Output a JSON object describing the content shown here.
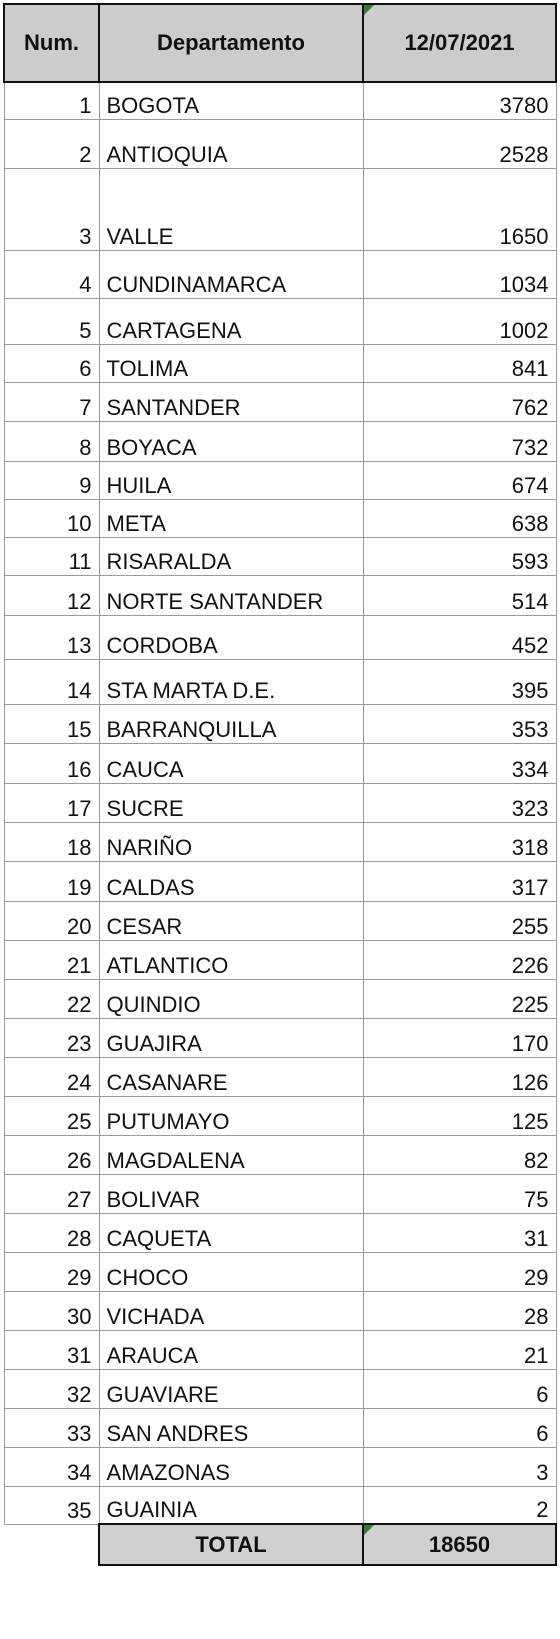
{
  "header": {
    "num_label": "Num.",
    "dept_label": "Departamento",
    "date_label": "12/07/2021"
  },
  "rows": [
    {
      "num": "1",
      "dept": "BOGOTA",
      "value": "3780"
    },
    {
      "num": "2",
      "dept": "ANTIOQUIA",
      "value": "2528"
    },
    {
      "num": "3",
      "dept": "VALLE",
      "value": "1650"
    },
    {
      "num": "4",
      "dept": "CUNDINAMARCA",
      "value": "1034"
    },
    {
      "num": "5",
      "dept": "CARTAGENA",
      "value": "1002"
    },
    {
      "num": "6",
      "dept": "TOLIMA",
      "value": "841"
    },
    {
      "num": "7",
      "dept": "SANTANDER",
      "value": "762"
    },
    {
      "num": "8",
      "dept": "BOYACA",
      "value": "732"
    },
    {
      "num": "9",
      "dept": "HUILA",
      "value": "674"
    },
    {
      "num": "10",
      "dept": "META",
      "value": "638"
    },
    {
      "num": "11",
      "dept": "RISARALDA",
      "value": "593"
    },
    {
      "num": "12",
      "dept": "NORTE SANTANDER",
      "value": "514"
    },
    {
      "num": "13",
      "dept": "CORDOBA",
      "value": "452"
    },
    {
      "num": "14",
      "dept": "STA MARTA D.E.",
      "value": "395"
    },
    {
      "num": "15",
      "dept": "BARRANQUILLA",
      "value": "353"
    },
    {
      "num": "16",
      "dept": "CAUCA",
      "value": "334"
    },
    {
      "num": "17",
      "dept": "SUCRE",
      "value": "323"
    },
    {
      "num": "18",
      "dept": "NARIÑO",
      "value": "318"
    },
    {
      "num": "19",
      "dept": "CALDAS",
      "value": "317"
    },
    {
      "num": "20",
      "dept": "CESAR",
      "value": "255"
    },
    {
      "num": "21",
      "dept": "ATLANTICO",
      "value": "226"
    },
    {
      "num": "22",
      "dept": "QUINDIO",
      "value": "225"
    },
    {
      "num": "23",
      "dept": "GUAJIRA",
      "value": "170"
    },
    {
      "num": "24",
      "dept": "CASANARE",
      "value": "126"
    },
    {
      "num": "25",
      "dept": "PUTUMAYO",
      "value": "125"
    },
    {
      "num": "26",
      "dept": "MAGDALENA",
      "value": "82"
    },
    {
      "num": "27",
      "dept": "BOLIVAR",
      "value": "75"
    },
    {
      "num": "28",
      "dept": "CAQUETA",
      "value": "31"
    },
    {
      "num": "29",
      "dept": "CHOCO",
      "value": "29"
    },
    {
      "num": "30",
      "dept": "VICHADA",
      "value": "28"
    },
    {
      "num": "31",
      "dept": "ARAUCA",
      "value": "21"
    },
    {
      "num": "32",
      "dept": "GUAVIARE",
      "value": "6"
    },
    {
      "num": "33",
      "dept": "SAN ANDRES",
      "value": "6"
    },
    {
      "num": "34",
      "dept": "AMAZONAS",
      "value": "3"
    },
    {
      "num": "35",
      "dept": "GUAINIA",
      "value": "2"
    }
  ],
  "total": {
    "label": "TOTAL",
    "value": "18650"
  },
  "colors": {
    "header_bg": "#cccccc",
    "total_bg": "#d0d0d0",
    "grid_line": "#9a9a9a",
    "indicator_green": "#2e7d32"
  }
}
